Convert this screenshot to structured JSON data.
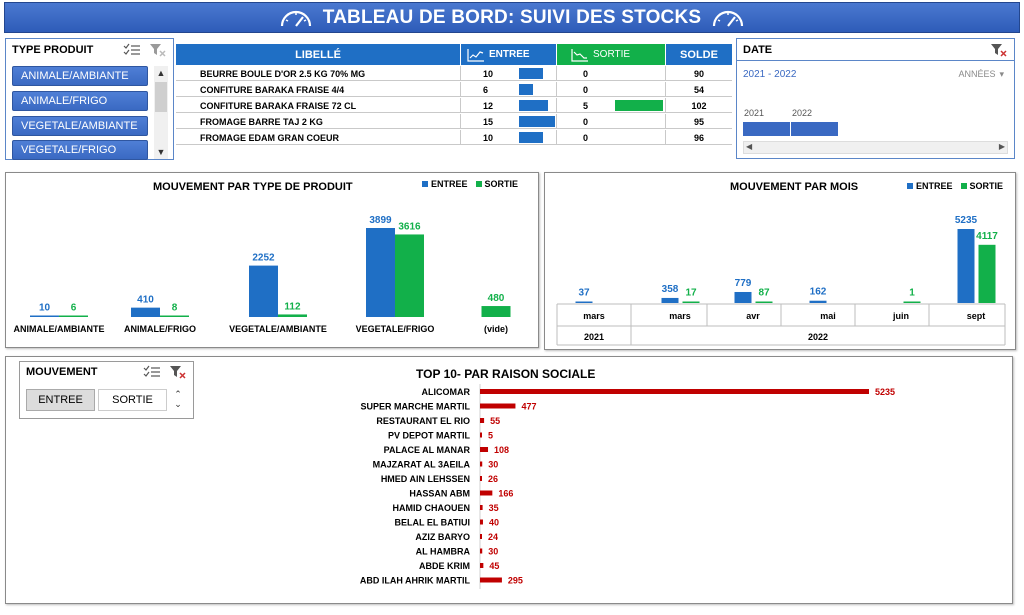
{
  "header": {
    "title": "TABLEAU DE BORD: SUIVI DES STOCKS"
  },
  "colors": {
    "entree": "#1f6fc5",
    "sortie": "#12b04a",
    "header": "#3461bd",
    "top10": "#c00000",
    "slicer": "#3a69c2"
  },
  "type_slicer": {
    "title": "TYPE PRODUIT",
    "items": [
      "ANIMALE/AMBIANTE",
      "ANIMALE/FRIGO",
      "VEGETALE/AMBIANTE",
      "VEGETALE/FRIGO"
    ],
    "icons": [
      "multi-select-icon",
      "clear-filter-icon"
    ]
  },
  "table": {
    "headers": {
      "libelle": "LIBELLÉ",
      "entree": "ENTREE",
      "sortie": "SORTIE",
      "solde": "SOLDE"
    },
    "rows": [
      {
        "libelle": "BEURRE BOULE D'OR 2.5 KG 70% MG",
        "entree": "10",
        "sortie": "0",
        "solde": "90"
      },
      {
        "libelle": "CONFITURE BARAKA FRAISE 4/4",
        "entree": "6",
        "sortie": "0",
        "solde": "54"
      },
      {
        "libelle": "CONFITURE BARAKA FRAISE 72 CL",
        "entree": "12",
        "sortie": "5",
        "solde": "102"
      },
      {
        "libelle": "FROMAGE BARRE TAJ 2 KG",
        "entree": "15",
        "sortie": "0",
        "solde": "95"
      },
      {
        "libelle": "FROMAGE EDAM GRAN COEUR",
        "entree": "10",
        "sortie": "0",
        "solde": "96"
      }
    ]
  },
  "date_slicer": {
    "title": "DATE",
    "range": "2021 - 2022",
    "level": "ANNÉES",
    "years": [
      "2021",
      "2022"
    ]
  },
  "movement_slicer": {
    "title": "MOUVEMENT",
    "items": [
      "ENTREE",
      "SORTIE"
    ]
  },
  "chart_data": [
    {
      "type": "bar",
      "title": "MOUVEMENT PAR TYPE DE PRODUIT",
      "legend": "top-right",
      "categories": [
        "ANIMALE/AMBIANTE",
        "ANIMALE/FRIGO",
        "VEGETALE/AMBIANTE",
        "VEGETALE/FRIGO",
        "(vide)"
      ],
      "series": [
        {
          "name": "ENTREE",
          "values": [
            10,
            410,
            2252,
            3899,
            null
          ]
        },
        {
          "name": "SORTIE",
          "values": [
            6,
            8,
            112,
            3616,
            480
          ]
        }
      ]
    },
    {
      "type": "bar",
      "title": "MOUVEMENT PAR MOIS",
      "legend": "top-right",
      "categories": [
        "mars",
        "mars",
        "avr",
        "mai",
        "juin",
        "sept"
      ],
      "groups": [
        {
          "label": "2021",
          "span": 1
        },
        {
          "label": "2022",
          "span": 5
        }
      ],
      "series": [
        {
          "name": "ENTREE",
          "values": [
            37,
            358,
            779,
            162,
            null,
            5235
          ]
        },
        {
          "name": "SORTIE",
          "values": [
            null,
            17,
            87,
            null,
            1,
            4117
          ]
        }
      ]
    },
    {
      "type": "bar",
      "orientation": "horizontal",
      "title": "TOP 10-  PAR RAISON SOCIALE",
      "categories": [
        "ALICOMAR",
        "SUPER MARCHE MARTIL",
        "RESTAURANT EL RIO",
        "PV DEPOT MARTIL",
        "PALACE AL MANAR",
        "MAJZARAT AL 3AEILA",
        "HMED AIN LEHSSEN",
        "HASSAN ABM",
        "HAMID CHAOUEN",
        "BELAL EL BATIUI",
        "AZIZ BARYO",
        "AL HAMBRA",
        "ABDE KRIM",
        "ABD ILAH AHRIK MARTIL"
      ],
      "values": [
        5235,
        477,
        55,
        5,
        108,
        30,
        26,
        166,
        35,
        40,
        24,
        30,
        45,
        295
      ]
    }
  ]
}
